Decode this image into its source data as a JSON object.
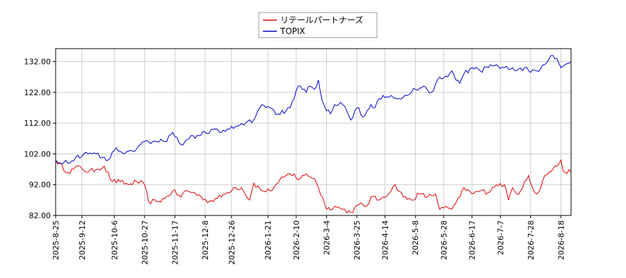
{
  "chart_data": {
    "type": "line",
    "title": "",
    "xlabel": "",
    "ylabel": "",
    "ylim": [
      82,
      136.2
    ],
    "y_ticks": [
      "82.00",
      "92.00",
      "102.00",
      "112.00",
      "122.00",
      "132.00"
    ],
    "x_ticks": [
      "2025-8-25",
      "2025-9-12",
      "2025-10-6",
      "2025-10-27",
      "2025-11-17",
      "2025-12-8",
      "2025-12-26",
      "2026-1-21",
      "2026-2-10",
      "2026-3-4",
      "2026-3-25",
      "2026-4-14",
      "2026-5-8",
      "2026-5-28",
      "2026-6-17",
      "2026-7-7",
      "2026-7-28",
      "2026-8-18"
    ],
    "x_tick_index": [
      0,
      13,
      29,
      44,
      59,
      74,
      87,
      105,
      119,
      134,
      149,
      163,
      178,
      192,
      206,
      220,
      235,
      250
    ],
    "grid": true,
    "legend_position": "top-center",
    "series": [
      {
        "name": "リテールパートナーズ",
        "color": "#dd0000",
        "keypoints": [
          [
            0,
            100
          ],
          [
            6,
            96
          ],
          [
            12,
            98
          ],
          [
            16,
            96
          ],
          [
            20,
            97
          ],
          [
            24,
            98
          ],
          [
            28,
            93
          ],
          [
            32,
            93
          ],
          [
            36,
            92
          ],
          [
            40,
            93
          ],
          [
            44,
            92
          ],
          [
            46,
            86.5
          ],
          [
            50,
            86.5
          ],
          [
            54,
            87.5
          ],
          [
            58,
            90
          ],
          [
            62,
            88
          ],
          [
            64,
            90
          ],
          [
            68,
            89.5
          ],
          [
            72,
            88
          ],
          [
            76,
            86.5
          ],
          [
            80,
            87.5
          ],
          [
            84,
            89
          ],
          [
            88,
            91
          ],
          [
            92,
            91
          ],
          [
            96,
            87
          ],
          [
            98,
            92.5
          ],
          [
            102,
            90
          ],
          [
            106,
            90
          ],
          [
            110,
            92.5
          ],
          [
            114,
            95
          ],
          [
            118,
            95.5
          ],
          [
            120,
            93.5
          ],
          [
            124,
            95.5
          ],
          [
            128,
            94
          ],
          [
            130,
            91
          ],
          [
            132,
            88
          ],
          [
            134,
            84
          ],
          [
            138,
            85
          ],
          [
            142,
            84
          ],
          [
            146,
            83
          ],
          [
            150,
            85.5
          ],
          [
            154,
            85
          ],
          [
            156,
            88
          ],
          [
            160,
            87
          ],
          [
            162,
            88
          ],
          [
            166,
            90
          ],
          [
            168,
            92
          ],
          [
            172,
            88
          ],
          [
            176,
            87
          ],
          [
            180,
            89
          ],
          [
            184,
            88
          ],
          [
            188,
            89
          ],
          [
            190,
            84
          ],
          [
            194,
            84.5
          ],
          [
            196,
            84
          ],
          [
            198,
            86
          ],
          [
            200,
            88
          ],
          [
            202,
            91
          ],
          [
            206,
            89
          ],
          [
            210,
            90
          ],
          [
            214,
            89.5
          ],
          [
            216,
            91
          ],
          [
            218,
            92
          ],
          [
            222,
            92
          ],
          [
            224,
            87
          ],
          [
            226,
            91
          ],
          [
            228,
            89
          ],
          [
            230,
            90
          ],
          [
            232,
            93
          ],
          [
            234,
            95
          ],
          [
            236,
            91
          ],
          [
            238,
            89
          ],
          [
            240,
            91
          ],
          [
            242,
            95
          ],
          [
            246,
            97
          ],
          [
            248,
            98
          ],
          [
            250,
            100
          ],
          [
            251,
            96.5
          ],
          [
            255,
            96
          ]
        ]
      },
      {
        "name": "TOPIX",
        "color": "#0000cc",
        "keypoints": [
          [
            0,
            100
          ],
          [
            6,
            99
          ],
          [
            10,
            101
          ],
          [
            16,
            102
          ],
          [
            20,
            102
          ],
          [
            24,
            101
          ],
          [
            26,
            100
          ],
          [
            30,
            104
          ],
          [
            34,
            102
          ],
          [
            38,
            103
          ],
          [
            42,
            105
          ],
          [
            46,
            106
          ],
          [
            50,
            106
          ],
          [
            54,
            106
          ],
          [
            58,
            109
          ],
          [
            62,
            105
          ],
          [
            66,
            107
          ],
          [
            70,
            108
          ],
          [
            74,
            109
          ],
          [
            78,
            110
          ],
          [
            82,
            109
          ],
          [
            86,
            110
          ],
          [
            90,
            111
          ],
          [
            94,
            112
          ],
          [
            98,
            113
          ],
          [
            100,
            116
          ],
          [
            102,
            118
          ],
          [
            106,
            117
          ],
          [
            110,
            115
          ],
          [
            114,
            116
          ],
          [
            116,
            117
          ],
          [
            118,
            120
          ],
          [
            120,
            124
          ],
          [
            122,
            123
          ],
          [
            124,
            122
          ],
          [
            126,
            124
          ],
          [
            128,
            123
          ],
          [
            130,
            126
          ],
          [
            132,
            119
          ],
          [
            134,
            116
          ],
          [
            136,
            115
          ],
          [
            138,
            118
          ],
          [
            140,
            118
          ],
          [
            142,
            118
          ],
          [
            144,
            116
          ],
          [
            146,
            113
          ],
          [
            148,
            116
          ],
          [
            150,
            117
          ],
          [
            152,
            114
          ],
          [
            154,
            116
          ],
          [
            156,
            118
          ],
          [
            158,
            117
          ],
          [
            160,
            120
          ],
          [
            162,
            121
          ],
          [
            166,
            121
          ],
          [
            170,
            120
          ],
          [
            174,
            121
          ],
          [
            178,
            123
          ],
          [
            182,
            124
          ],
          [
            186,
            122
          ],
          [
            190,
            127
          ],
          [
            194,
            127
          ],
          [
            196,
            129
          ],
          [
            198,
            126
          ],
          [
            200,
            125
          ],
          [
            202,
            128
          ],
          [
            206,
            130
          ],
          [
            210,
            129
          ],
          [
            214,
            130
          ],
          [
            218,
            131
          ],
          [
            222,
            130
          ],
          [
            226,
            130
          ],
          [
            228,
            129
          ],
          [
            232,
            130
          ],
          [
            234,
            129
          ],
          [
            238,
            129
          ],
          [
            242,
            131
          ],
          [
            246,
            134
          ],
          [
            248,
            133
          ],
          [
            250,
            130
          ],
          [
            252,
            131
          ],
          [
            255,
            132
          ]
        ]
      }
    ]
  }
}
